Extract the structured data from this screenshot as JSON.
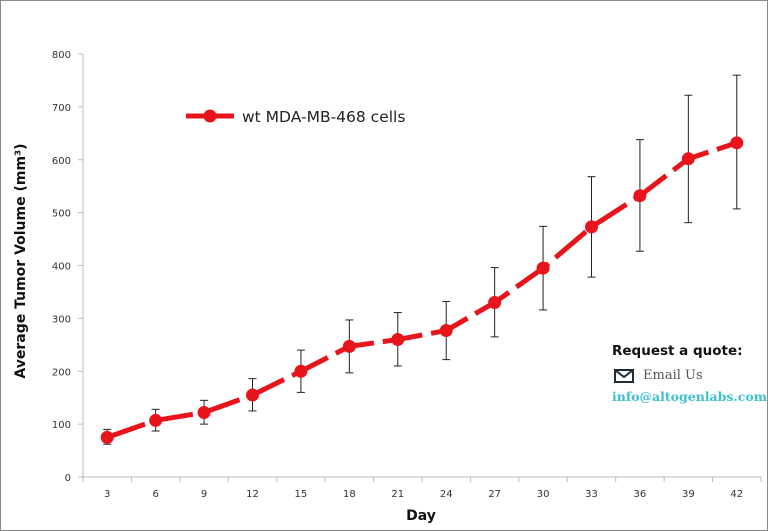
{
  "chart_data": {
    "type": "line",
    "xlabel": "Day",
    "ylabel": "Average Tumor Volume (mm³)",
    "ylim": [
      0,
      800
    ],
    "yticks": [
      0,
      100,
      200,
      300,
      400,
      500,
      600,
      700,
      800
    ],
    "categories": [
      "3",
      "6",
      "9",
      "12",
      "15",
      "18",
      "21",
      "24",
      "27",
      "30",
      "33",
      "36",
      "39",
      "42"
    ],
    "series": [
      {
        "name": "wt MDA-MB-468 cells",
        "color": "#e8141b",
        "values": [
          75,
          107,
          122,
          155,
          200,
          247,
          260,
          277,
          330,
          395,
          473,
          532,
          602,
          632
        ],
        "error_low": [
          62,
          87,
          100,
          125,
          160,
          197,
          210,
          222,
          265,
          316,
          378,
          427,
          481,
          507
        ],
        "error_high": [
          90,
          128,
          145,
          186,
          240,
          297,
          311,
          332,
          396,
          474,
          568,
          638,
          722,
          760
        ]
      }
    ],
    "legend_position": "top-left",
    "grid": false
  },
  "quote": {
    "title": "Request a quote:",
    "email_icon": "envelope-icon",
    "email_label": "Email Us",
    "email_address": "info@altogenlabs.com"
  }
}
